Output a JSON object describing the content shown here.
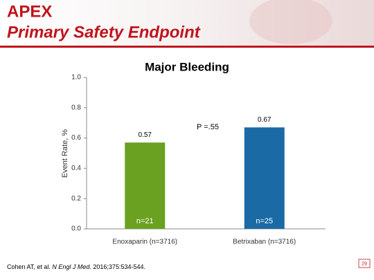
{
  "header": {
    "title": "APEX",
    "subtitle": "Primary Safety Endpoint"
  },
  "chart_data": {
    "type": "bar",
    "title": "Major Bleeding",
    "y_label": "Event Rate, %",
    "categories": [
      "Enoxaparin (n=3716)",
      "Betrixaban (n=3716)"
    ],
    "values": [
      0.57,
      0.67
    ],
    "colors": [
      "#6aa121",
      "#1a6aa5"
    ],
    "bar_annotations": [
      "n=21",
      "n=25"
    ],
    "annotation": "P =.55",
    "ylim": [
      0,
      1
    ],
    "yticks": [
      {
        "value": 0,
        "label": "0.0"
      },
      {
        "value": 0.2,
        "label": "0.2"
      },
      {
        "value": 0.4,
        "label": "0.4"
      },
      {
        "value": 0.6,
        "label": "0.6"
      },
      {
        "value": 0.8,
        "label": "0.8"
      },
      {
        "value": 1,
        "label": "1.0"
      }
    ],
    "grid": false
  },
  "footer": {
    "citation_start": "Cohen AT, et al. ",
    "journal": "N Engl J Med.",
    "citation_end": " 2016;375:534-544.",
    "page_number": "29"
  }
}
